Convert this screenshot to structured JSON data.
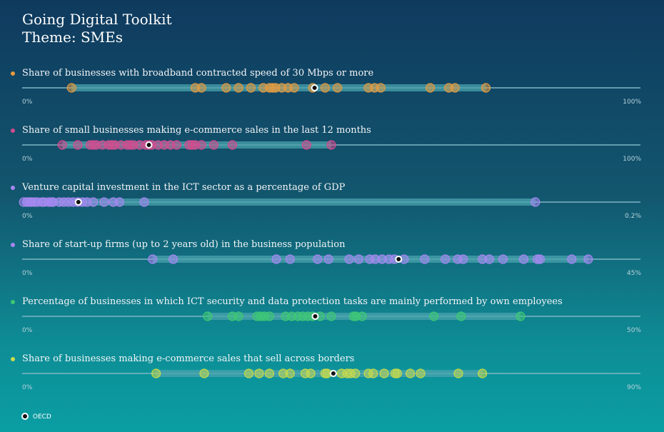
{
  "header": {
    "title": "Going Digital Toolkit",
    "subtitle": "Theme: SMEs"
  },
  "legend": {
    "oecd_label": "OECD"
  },
  "colors": {
    "oecd_marker": "#111111",
    "range_bar": "#4aa3ad",
    "axis_line": "#7fb6c4"
  },
  "chart_data": [
    {
      "type": "scatter",
      "title": "Share of businesses with broadband contracted speed of 30 Mbps or more",
      "color": "#e59a3e",
      "xlim": [
        0,
        100
      ],
      "axis_min_label": "0%",
      "axis_max_label": "100%",
      "values": [
        8,
        28,
        29,
        33,
        35,
        37,
        39,
        40,
        40.5,
        41,
        42,
        43,
        44,
        47,
        49,
        51,
        56,
        57,
        58,
        66,
        69,
        70,
        75
      ],
      "oecd": 47.3
    },
    {
      "type": "scatter",
      "title": "Share of small businesses making e-commerce sales in the last 12 months",
      "color": "#d54a8e",
      "xlim": [
        0,
        100
      ],
      "axis_min_label": "0%",
      "axis_max_label": "100%",
      "values": [
        6.5,
        9,
        11,
        11.5,
        12,
        13,
        14,
        14.5,
        15,
        16,
        17,
        17.5,
        18,
        19,
        20,
        20.5,
        21,
        22,
        23,
        24,
        25,
        27,
        27.5,
        28,
        29,
        31,
        34,
        46,
        50
      ],
      "oecd": 20.5
    },
    {
      "type": "scatter",
      "title": "Venture capital investment in the ICT sector as a percentage of GDP",
      "color": "#a887f2",
      "xlim": [
        0,
        0.2
      ],
      "axis_min_label": "0%",
      "axis_max_label": "0.2%",
      "values": [
        0.0005,
        0.0015,
        0.0025,
        0.003,
        0.004,
        0.005,
        0.0065,
        0.007,
        0.0085,
        0.0095,
        0.01,
        0.012,
        0.0135,
        0.015,
        0.0165,
        0.018,
        0.0195,
        0.021,
        0.023,
        0.0265,
        0.0295,
        0.0315,
        0.0395,
        0.166
      ],
      "oecd": 0.0182
    },
    {
      "type": "scatter",
      "title": "Share of start-up firms (up to 2 years old) in the business population",
      "color": "#a887f2",
      "xlim": [
        0,
        45
      ],
      "axis_min_label": "0%",
      "axis_max_label": "45%",
      "values": [
        9.5,
        11,
        18.5,
        19.5,
        21.5,
        22.3,
        23.8,
        24.5,
        25.3,
        25.7,
        26.2,
        26.7,
        27.1,
        27.8,
        29.3,
        30.8,
        31.7,
        32.1,
        33.5,
        34,
        35,
        36.5,
        37.5,
        37.7,
        40,
        41.2
      ],
      "oecd": 27.4
    },
    {
      "type": "scatter",
      "title": "Percentage of businesses in which ICT security and data protection tasks are mainly performed by own employees",
      "color": "#3ec873",
      "xlim": [
        0,
        50
      ],
      "axis_min_label": "0%",
      "axis_max_label": "50%",
      "values": [
        15,
        17,
        17.5,
        19,
        19.3,
        19.6,
        20,
        21.3,
        21.8,
        22.3,
        22.7,
        23.1,
        23.5,
        24.1,
        25,
        26.8,
        27,
        27.5,
        33.3,
        35.5,
        40.3
      ],
      "oecd": 23.7
    },
    {
      "type": "scatter",
      "title": "Share of businesses making e-commerce sales that sell across borders",
      "color": "#c8db4a",
      "xlim": [
        0,
        90
      ],
      "axis_min_label": "0%",
      "axis_max_label": "90%",
      "values": [
        19.5,
        26.5,
        33,
        34.5,
        36,
        38,
        39,
        41.2,
        42,
        44.1,
        44.4,
        46.5,
        47.3,
        47.8,
        48.5,
        50.4,
        51.1,
        52.7,
        54.3,
        54.6,
        56.5,
        58,
        63.5,
        67
      ],
      "oecd": 45.3
    }
  ]
}
